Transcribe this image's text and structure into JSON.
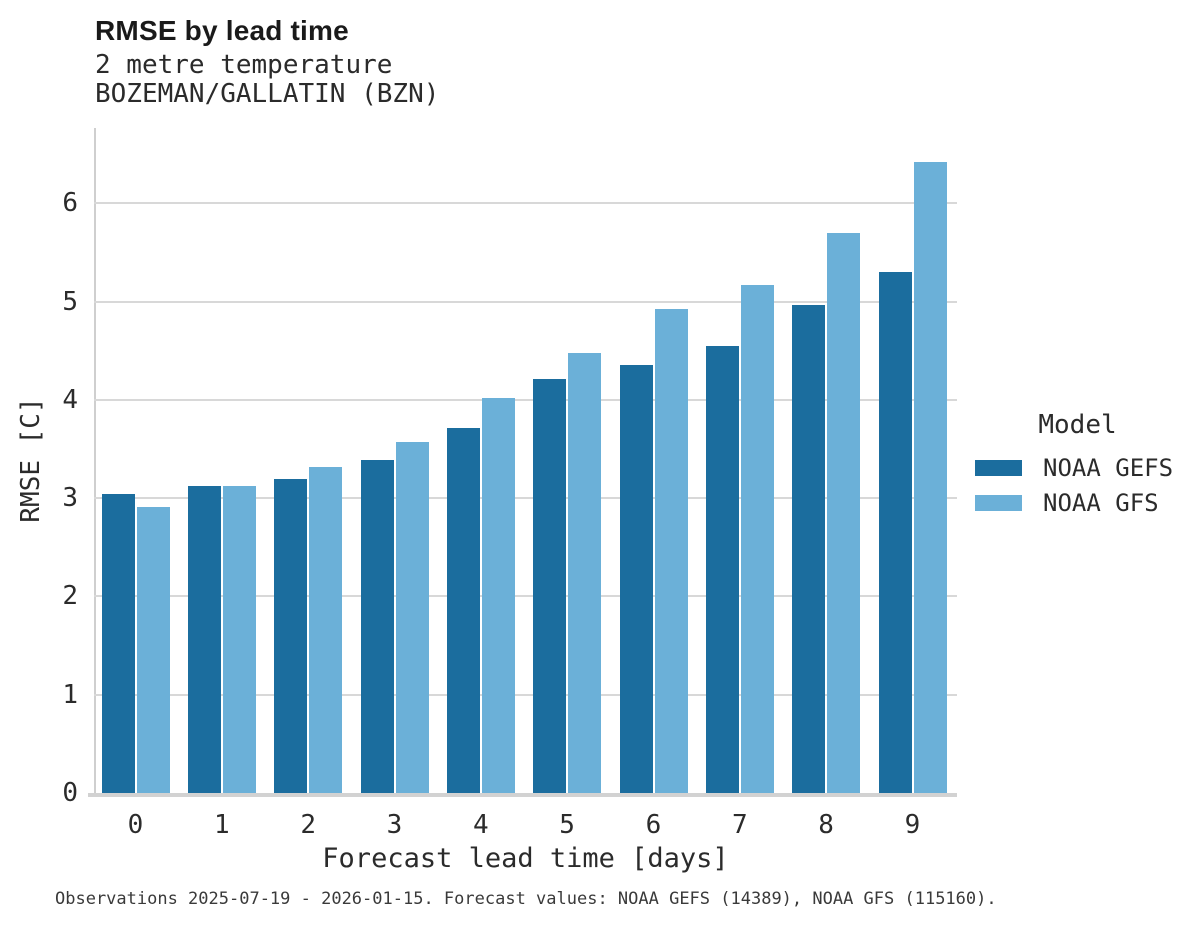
{
  "caption": "Observations 2025-07-19 - 2026-01-15. Forecast values: NOAA GEFS (14389), NOAA GFS (115160).",
  "chart_data": {
    "type": "bar",
    "title": "RMSE by lead time",
    "subtitle1": "2 metre temperature",
    "subtitle2": "BOZEMAN/GALLATIN (BZN)",
    "categories": [
      0,
      1,
      2,
      3,
      4,
      5,
      6,
      7,
      8,
      9
    ],
    "series": [
      {
        "name": "NOAA GEFS",
        "color": "#1b6d9e",
        "values": [
          3.04,
          3.12,
          3.19,
          3.39,
          3.71,
          4.21,
          4.35,
          4.55,
          4.96,
          5.3
        ]
      },
      {
        "name": "NOAA GFS",
        "color": "#6bb0d8",
        "values": [
          2.91,
          3.12,
          3.32,
          3.57,
          4.02,
          4.48,
          4.92,
          5.17,
          5.7,
          6.42
        ]
      }
    ],
    "xlabel": "Forecast lead time [days]",
    "ylabel": "RMSE [C]",
    "ylim": [
      0,
      6.77
    ],
    "yticks": [
      0,
      1,
      2,
      3,
      4,
      5,
      6
    ],
    "grid": true,
    "legend_title": "Model",
    "legend_position": "right",
    "background": "#ffffff",
    "gridline_color": "#d8d8d8"
  }
}
